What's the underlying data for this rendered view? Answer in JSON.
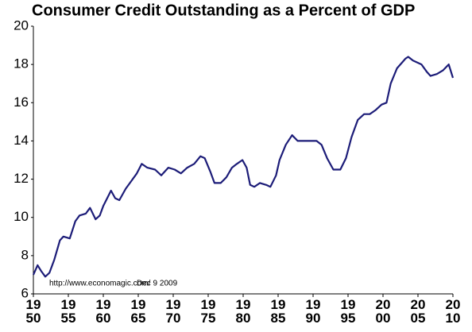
{
  "chart_data": {
    "type": "line",
    "title": "Consumer Credit Outstanding as a Percent of GDP",
    "annotations": [
      "http://www.economagic.com/",
      "Dec 9 2009"
    ],
    "color": "#1c1c78",
    "x": [
      1950.0,
      1950.6,
      1951.1,
      1951.7,
      1952.3,
      1953.0,
      1953.8,
      1954.3,
      1955.2,
      1956.0,
      1956.6,
      1957.5,
      1958.1,
      1958.9,
      1959.5,
      1960.0,
      1961.1,
      1961.7,
      1962.3,
      1963.2,
      1964.0,
      1964.8,
      1965.5,
      1966.3,
      1967.4,
      1968.3,
      1969.3,
      1970.2,
      1971.1,
      1972.0,
      1973.0,
      1973.9,
      1974.5,
      1975.3,
      1975.9,
      1976.8,
      1977.6,
      1978.4,
      1979.1,
      1979.9,
      1980.5,
      1981.0,
      1981.6,
      1982.4,
      1983.3,
      1983.9,
      1984.7,
      1985.2,
      1986.1,
      1987.0,
      1987.8,
      1988.6,
      1989.5,
      1990.5,
      1991.2,
      1992.0,
      1992.9,
      1993.9,
      1994.7,
      1995.5,
      1996.4,
      1997.3,
      1998.1,
      1998.9,
      1999.8,
      2000.5,
      2001.1,
      2002.0,
      2003.2,
      2003.6,
      2004.3,
      2005.5,
      2006.3,
      2006.8,
      2007.7,
      2008.6,
      2009.4,
      2010.0
    ],
    "values": [
      7.0,
      7.5,
      7.2,
      6.9,
      7.1,
      7.8,
      8.8,
      9.0,
      8.9,
      9.8,
      10.1,
      10.2,
      10.5,
      9.9,
      10.1,
      10.6,
      11.4,
      11.0,
      10.9,
      11.5,
      11.9,
      12.3,
      12.8,
      12.6,
      12.5,
      12.2,
      12.6,
      12.5,
      12.3,
      12.6,
      12.8,
      13.2,
      13.1,
      12.4,
      11.8,
      11.8,
      12.1,
      12.6,
      12.8,
      13.0,
      12.6,
      11.7,
      11.6,
      11.8,
      11.7,
      11.6,
      12.2,
      13.0,
      13.8,
      14.3,
      14.0,
      14.0,
      14.0,
      14.0,
      13.8,
      13.1,
      12.5,
      12.5,
      13.1,
      14.2,
      15.1,
      15.4,
      15.4,
      15.6,
      15.9,
      16.0,
      17.0,
      17.8,
      18.3,
      18.4,
      18.2,
      18.0,
      17.6,
      17.4,
      17.5,
      17.7,
      18.0,
      17.3
    ],
    "xlim": [
      1950,
      2010
    ],
    "xticks": [
      1950,
      1955,
      1960,
      1965,
      1970,
      1975,
      1980,
      1985,
      1990,
      1995,
      2000,
      2005,
      2010
    ],
    "ylim": [
      6,
      20
    ],
    "yticks": [
      6,
      8,
      10,
      12,
      14,
      16,
      18,
      20
    ],
    "grid": false
  }
}
